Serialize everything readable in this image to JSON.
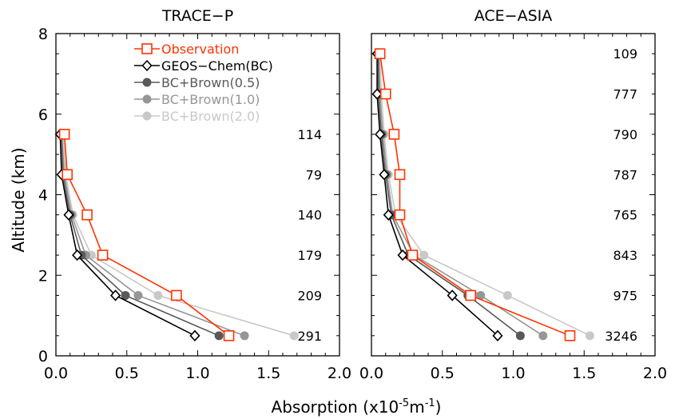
{
  "chart_data": {
    "type": "line",
    "xlabel": "Absorption (x10",
    "xlabel_sup": "-5",
    "xlabel_unit": "m",
    "xlabel_sup2": "-1",
    "xlabel_end": ")",
    "ylabel": "Altitude (km)",
    "xlim": [
      0,
      2.0
    ],
    "ylim": [
      0,
      8
    ],
    "x_ticks": [
      "0.0",
      "0.5",
      "1.0",
      "1.5",
      "2.0"
    ],
    "y_ticks": [
      "0",
      "2",
      "4",
      "6",
      "8"
    ],
    "legend": {
      "position": "top-left",
      "entries": [
        {
          "name": "Observation",
          "color": "#ff3300",
          "marker": "square",
          "filled": false
        },
        {
          "name": "GEOS−Chem(BC)",
          "color": "#000000",
          "marker": "diamond",
          "filled": false
        },
        {
          "name": "BC+Brown(0.5)",
          "color": "#595959",
          "marker": "circle",
          "filled": true
        },
        {
          "name": "BC+Brown(1.0)",
          "color": "#969696",
          "marker": "circle",
          "filled": true
        },
        {
          "name": "BC+Brown(2.0)",
          "color": "#c8c8c8",
          "marker": "circle",
          "filled": true
        }
      ]
    },
    "panels": [
      {
        "title": "TRACE−P",
        "altitudes": [
          0.5,
          1.5,
          2.5,
          3.5,
          4.5,
          5.5
        ],
        "counts": [
          "291",
          "209",
          "179",
          "140",
          "79",
          "114"
        ],
        "series": [
          {
            "name": "BC+Brown(2.0)",
            "values": [
              1.68,
              0.72,
              0.25,
              0.12,
              0.07,
              0.05
            ]
          },
          {
            "name": "BC+Brown(1.0)",
            "values": [
              1.33,
              0.58,
              0.21,
              0.11,
              0.06,
              0.04
            ]
          },
          {
            "name": "BC+Brown(0.5)",
            "values": [
              1.15,
              0.49,
              0.18,
              0.1,
              0.05,
              0.04
            ]
          },
          {
            "name": "GEOS−Chem(BC)",
            "values": [
              0.98,
              0.42,
              0.15,
              0.09,
              0.04,
              0.03
            ]
          },
          {
            "name": "Observation",
            "values": [
              1.22,
              0.85,
              0.33,
              0.22,
              0.08,
              0.06
            ]
          }
        ]
      },
      {
        "title": "ACE−ASIA",
        "altitudes": [
          0.5,
          1.5,
          2.5,
          3.5,
          4.5,
          5.5,
          6.5,
          7.5
        ],
        "counts": [
          "3246",
          "975",
          "843",
          "765",
          "787",
          "790",
          "777",
          "109"
        ],
        "series": [
          {
            "name": "BC+Brown(2.0)",
            "values": [
              1.54,
              0.96,
              0.37,
              0.17,
              0.12,
              0.09,
              0.07,
              0.06
            ]
          },
          {
            "name": "BC+Brown(1.0)",
            "values": [
              1.21,
              0.77,
              0.3,
              0.15,
              0.11,
              0.08,
              0.06,
              0.05
            ]
          },
          {
            "name": "BC+Brown(0.5)",
            "values": [
              1.05,
              0.68,
              0.26,
              0.14,
              0.1,
              0.07,
              0.05,
              0.05
            ]
          },
          {
            "name": "GEOS−Chem(BC)",
            "values": [
              0.89,
              0.57,
              0.22,
              0.12,
              0.09,
              0.06,
              0.04,
              0.04
            ]
          },
          {
            "name": "Observation",
            "values": [
              1.4,
              0.7,
              0.29,
              0.2,
              0.2,
              0.16,
              0.1,
              0.06
            ]
          }
        ]
      }
    ]
  }
}
